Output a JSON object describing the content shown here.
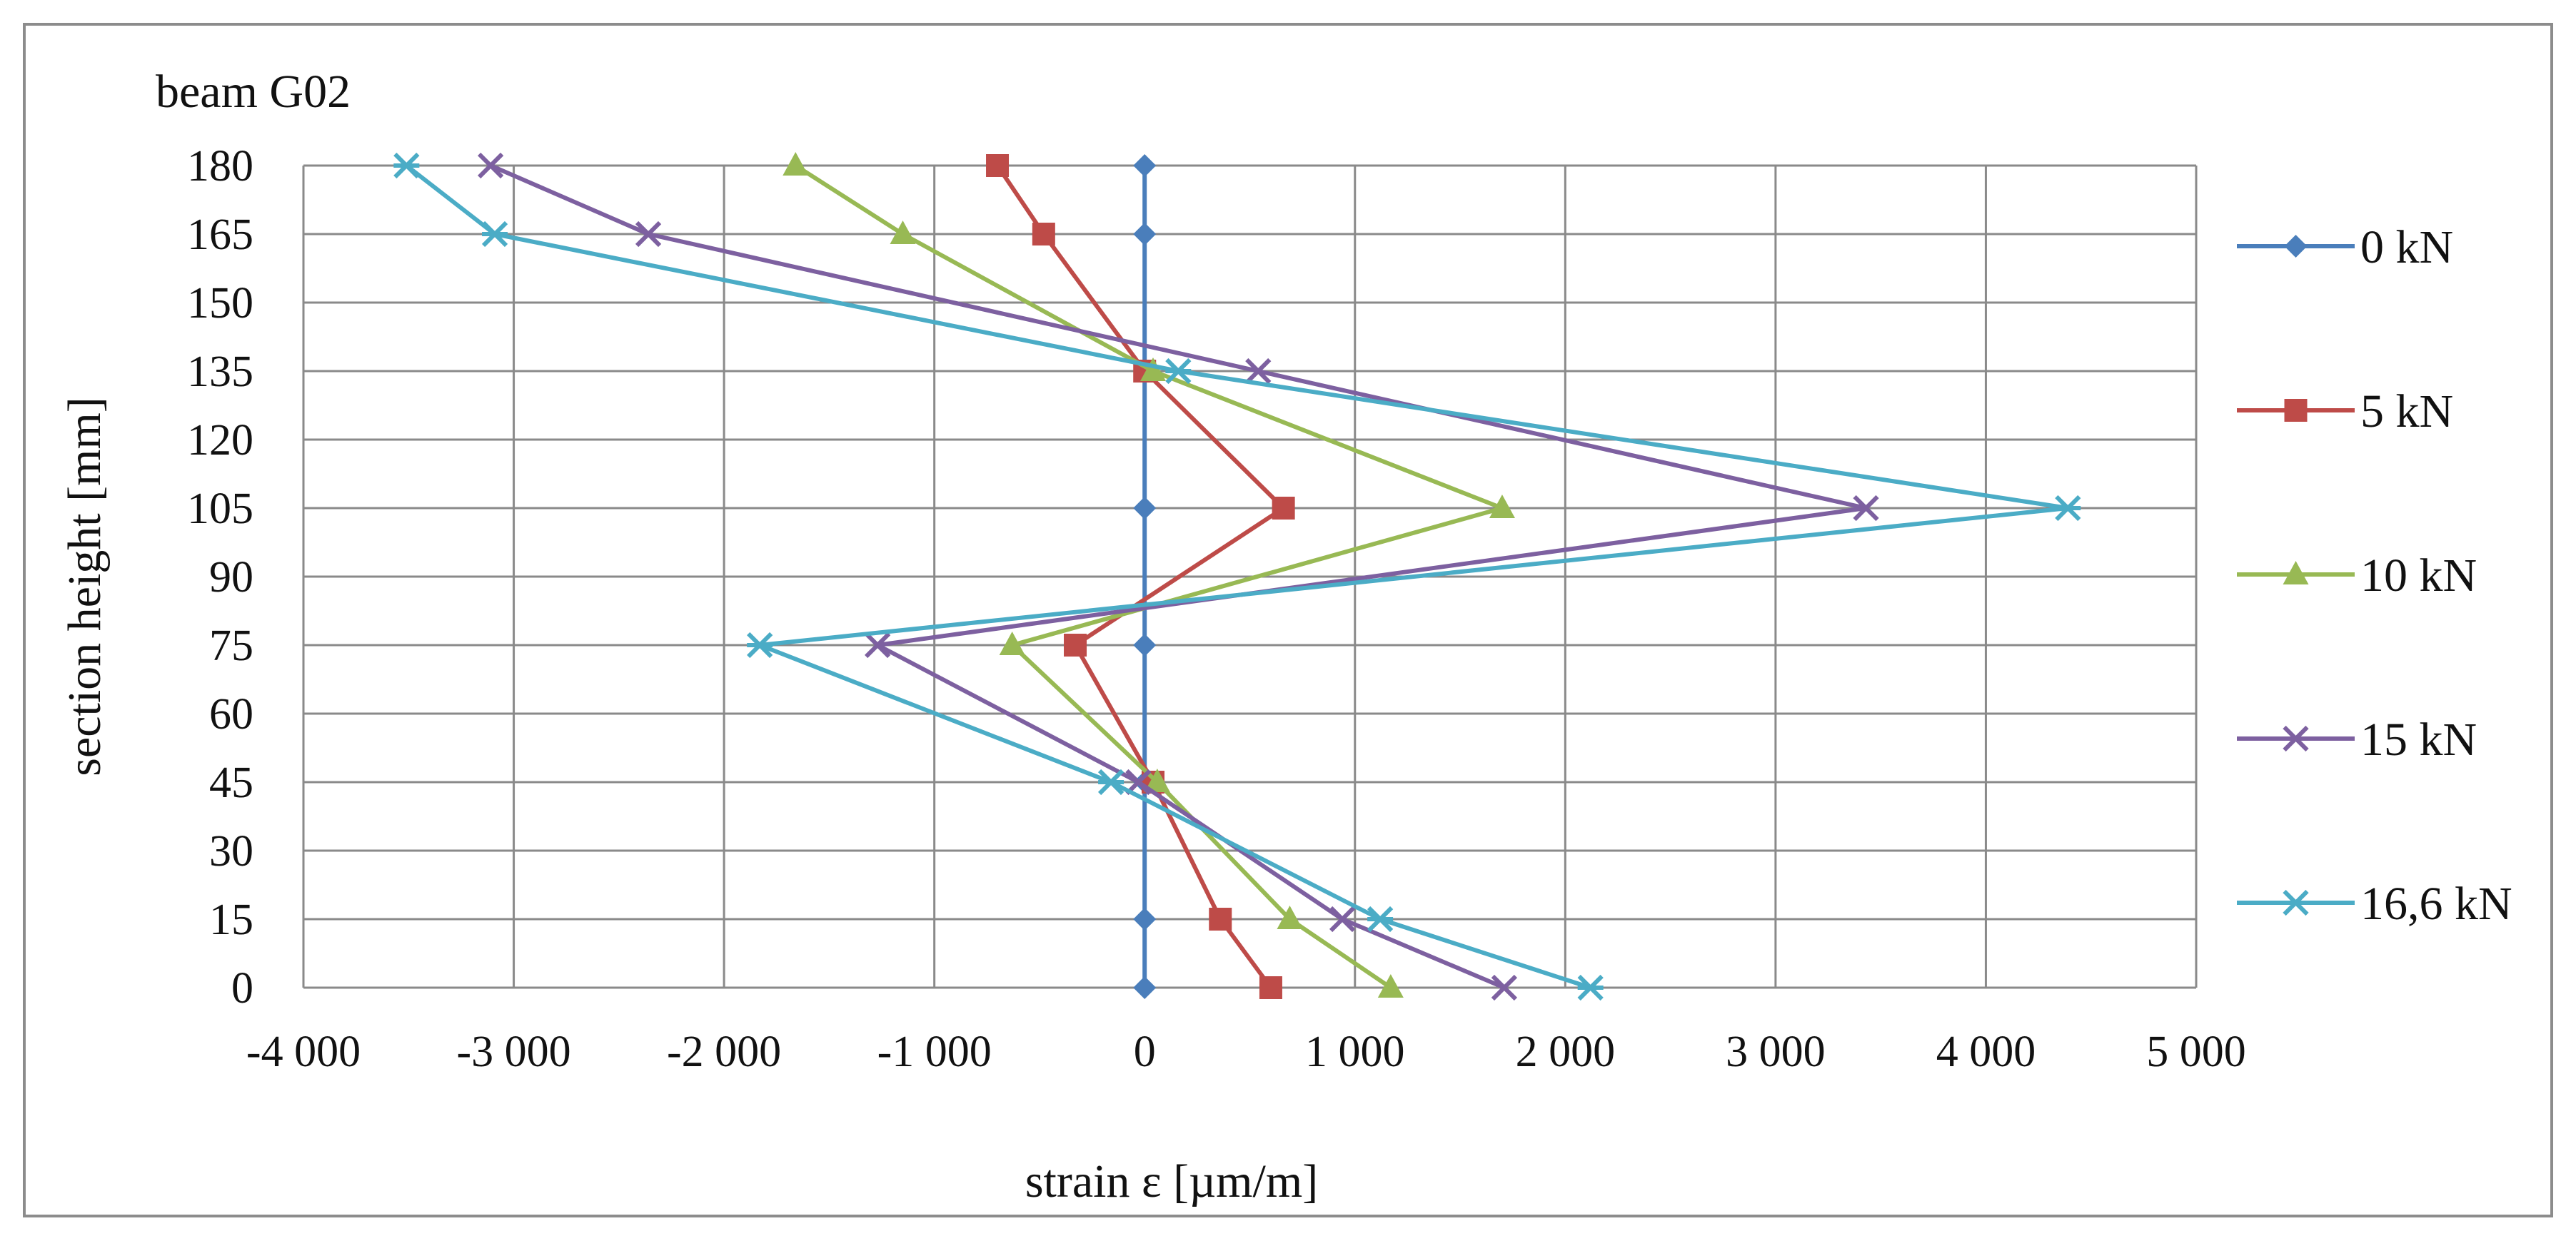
{
  "chart_data": {
    "type": "line",
    "title": "beam G02",
    "xlabel": "strain ε [µm/m]",
    "ylabel": "section height  [mm]",
    "xlim": [
      -4000,
      5000
    ],
    "ylim": [
      0,
      180
    ],
    "x_ticks": [
      -4000,
      -3000,
      -2000,
      -1000,
      0,
      1000,
      2000,
      3000,
      4000,
      5000
    ],
    "x_tick_labels": [
      "-4 000",
      "-3 000",
      "-2 000",
      "-1 000",
      "0",
      "1 000",
      "2 000",
      "3 000",
      "4 000",
      "5 000"
    ],
    "y_ticks": [
      0,
      15,
      30,
      45,
      60,
      75,
      90,
      105,
      120,
      135,
      150,
      165,
      180
    ],
    "y_tick_labels": [
      "0",
      "15",
      "30",
      "45",
      "60",
      "75",
      "90",
      "105",
      "120",
      "135",
      "150",
      "165",
      "180"
    ],
    "grid": true,
    "legend_position": "right",
    "heights": [
      180,
      165,
      135,
      105,
      75,
      45,
      15,
      0
    ],
    "series": [
      {
        "name": "0 kN",
        "color": "#4A7EBB",
        "marker": "diamond",
        "strain": [
          0,
          0,
          0,
          0,
          0,
          0,
          0,
          0
        ]
      },
      {
        "name": "5 kN",
        "color": "#BE4B48",
        "marker": "square",
        "strain": [
          -700,
          -480,
          0,
          660,
          -330,
          40,
          360,
          600
        ]
      },
      {
        "name": "10 kN",
        "color": "#98B954",
        "marker": "triangle",
        "strain": [
          -1660,
          -1150,
          40,
          1700,
          -630,
          60,
          690,
          1170
        ]
      },
      {
        "name": "15 kN",
        "color": "#7D60A0",
        "marker": "x",
        "strain": [
          -3110,
          -2360,
          540,
          3430,
          -1270,
          -30,
          940,
          1710
        ]
      },
      {
        "name": "16,6 kN",
        "color": "#4BACC6",
        "marker": "star",
        "strain": [
          -3510,
          -3090,
          160,
          4390,
          -1830,
          -160,
          1120,
          2120
        ]
      }
    ]
  }
}
